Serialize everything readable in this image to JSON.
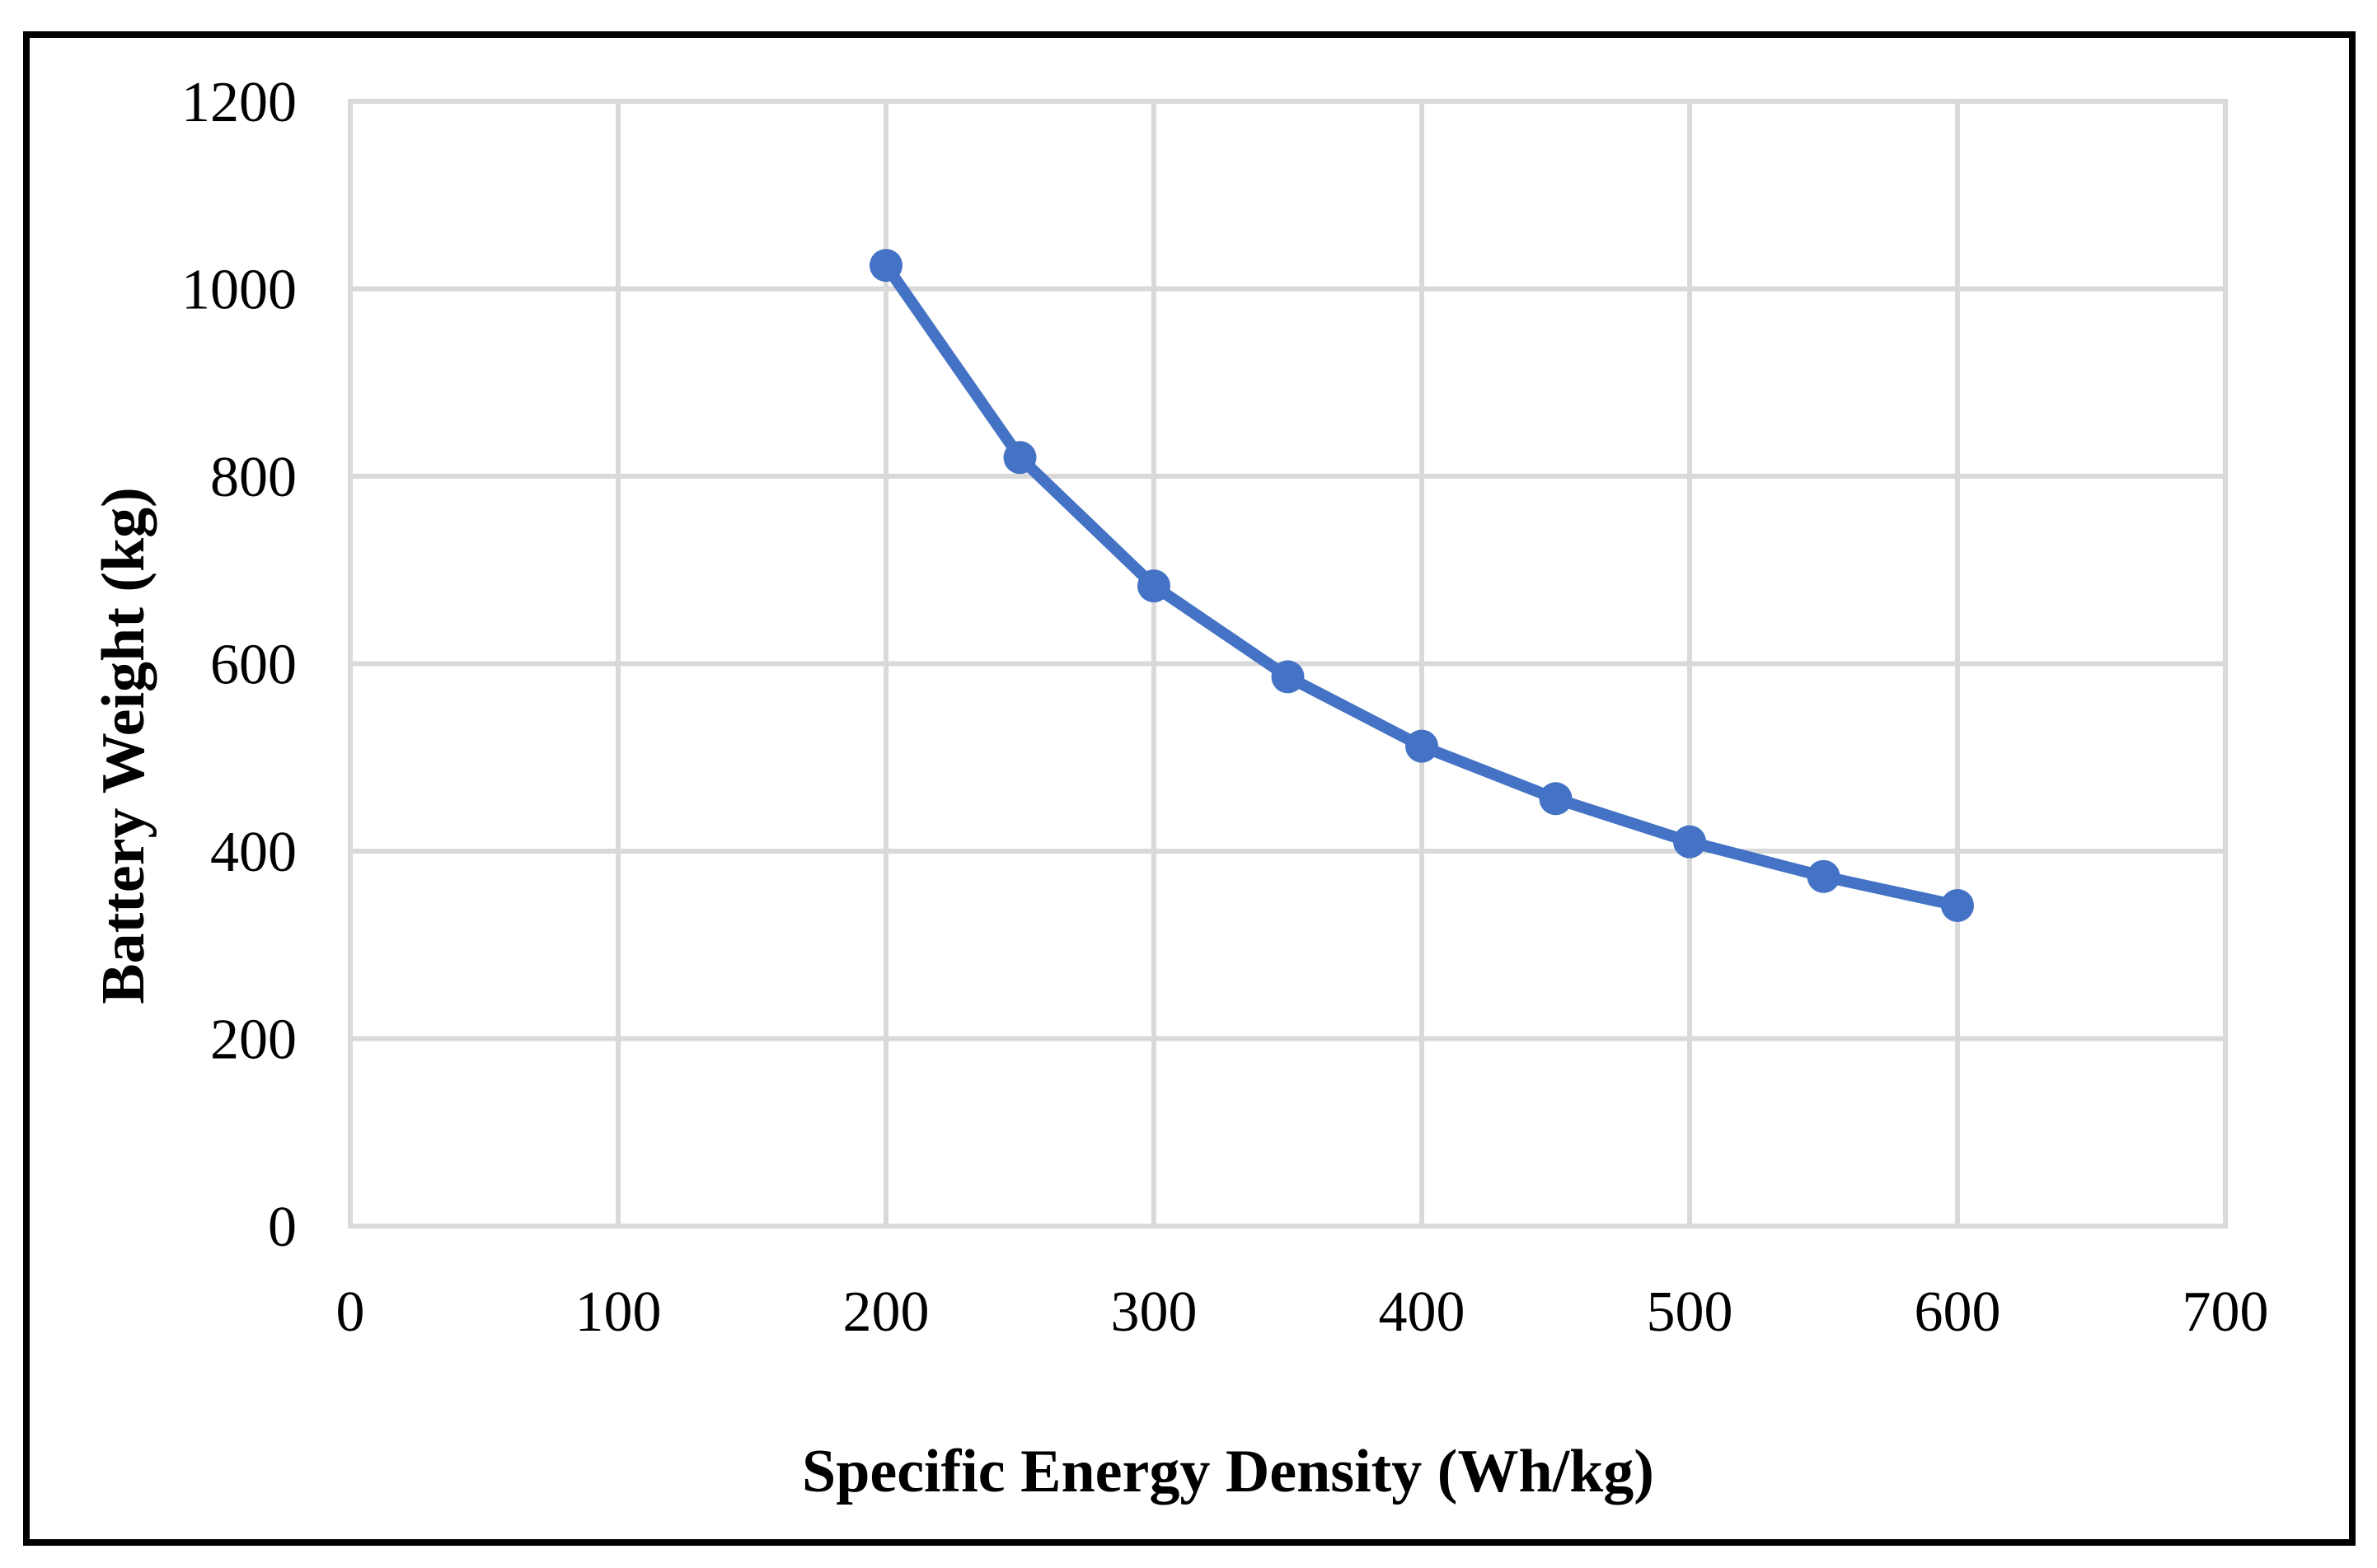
{
  "figure": {
    "background": "#ffffff",
    "frame_color": "#000000"
  },
  "chart_data": {
    "type": "line",
    "title": "",
    "xlabel": "Specific Energy Density (Wh/kg)",
    "ylabel": "Battery Weight (kg)",
    "x": [
      200,
      250,
      300,
      350,
      400,
      450,
      500,
      550,
      600
    ],
    "series": [
      {
        "values": [
          1025,
          820,
          683,
          586,
          512,
          456,
          410,
          373,
          342
        ],
        "color": "#4472C4",
        "marker": "circle",
        "marker_radius": 20,
        "line_width": 14
      }
    ],
    "xlim": [
      0,
      700
    ],
    "ylim": [
      0,
      1200
    ],
    "x_ticks": [
      0,
      100,
      200,
      300,
      400,
      500,
      600,
      700
    ],
    "y_ticks": [
      0,
      200,
      400,
      600,
      800,
      1000,
      1200
    ],
    "grid": true,
    "gridline_color": "#D9D9D9",
    "text_color": "#000000",
    "legend": "none"
  }
}
